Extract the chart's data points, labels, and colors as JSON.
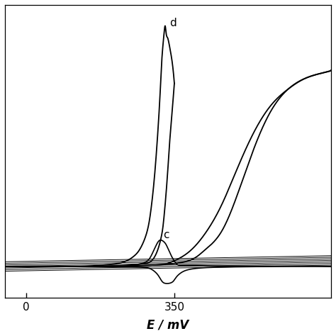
{
  "xlabel": "E / mV",
  "xticks": [
    0,
    350
  ],
  "xlim": [
    -50,
    720
  ],
  "ylim": [
    -0.12,
    1.0
  ],
  "background_color": "#ffffff",
  "line_color": "#000000",
  "label_c": "c",
  "label_d": "d",
  "label_fontsize": 11,
  "curve_d_fwd_x": [
    -50,
    50,
    130,
    180,
    210,
    235,
    255,
    270,
    285,
    295,
    305,
    315,
    320,
    325,
    328,
    330,
    332,
    335,
    340,
    345,
    350
  ],
  "curve_d_fwd_y": [
    0.0,
    0.0,
    0.0,
    0.005,
    0.01,
    0.02,
    0.04,
    0.07,
    0.13,
    0.22,
    0.38,
    0.62,
    0.78,
    0.88,
    0.92,
    0.9,
    0.88,
    0.87,
    0.83,
    0.78,
    0.7
  ],
  "curve_d_ret_x": [
    350,
    345,
    340,
    335,
    330,
    325,
    320,
    310,
    295,
    275,
    250,
    220,
    180,
    130,
    80,
    -50
  ],
  "curve_d_ret_y": [
    0.7,
    0.6,
    0.5,
    0.38,
    0.27,
    0.18,
    0.12,
    0.06,
    0.02,
    0.01,
    0.005,
    0.002,
    0.0,
    0.0,
    0.0,
    0.0
  ],
  "curve_c_fwd_x": [
    -50,
    100,
    200,
    270,
    295,
    310,
    320,
    330,
    340,
    355,
    375,
    450,
    600,
    720
  ],
  "curve_c_fwd_y": [
    0.0,
    0.0,
    0.002,
    0.01,
    0.04,
    0.09,
    0.1,
    0.085,
    0.05,
    0.01,
    0.005,
    0.002,
    0.001,
    0.0
  ],
  "curve_c_ret_x": [
    720,
    600,
    480,
    420,
    390,
    370,
    355,
    345,
    330,
    320,
    310,
    295,
    270,
    200,
    100,
    -50
  ],
  "curve_c_ret_y": [
    0.0,
    0.0,
    -0.002,
    -0.005,
    -0.01,
    -0.02,
    -0.04,
    -0.06,
    -0.065,
    -0.055,
    -0.03,
    -0.01,
    -0.003,
    -0.001,
    0.0,
    0.0
  ],
  "curve_big_fwd_x": [
    -50,
    80,
    200,
    300,
    380,
    420,
    460,
    500,
    540,
    580,
    620,
    660,
    700,
    720
  ],
  "curve_big_fwd_y": [
    0.0,
    0.0,
    0.0,
    0.005,
    0.02,
    0.06,
    0.13,
    0.28,
    0.46,
    0.6,
    0.68,
    0.72,
    0.74,
    0.75
  ],
  "curve_big_ret_x": [
    720,
    700,
    660,
    620,
    580,
    540,
    500,
    460,
    420,
    380,
    340,
    300,
    200,
    100,
    -50
  ],
  "curve_big_ret_y": [
    0.75,
    0.74,
    0.72,
    0.68,
    0.62,
    0.52,
    0.38,
    0.23,
    0.12,
    0.05,
    0.015,
    0.005,
    0.001,
    0.0,
    0.0
  ],
  "flat_lines_y": [
    0.0,
    0.012,
    -0.012,
    0.006,
    -0.006,
    0.018,
    -0.018
  ]
}
